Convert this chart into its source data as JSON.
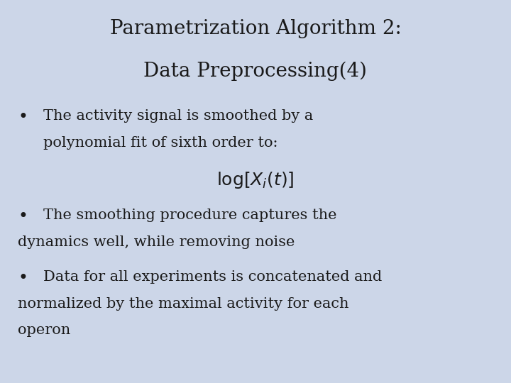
{
  "title_line1": "Parametrization Algorithm 2:",
  "title_line2": "Data Preprocessing(4)",
  "bullet1_line1": "The activity signal is smoothed by a",
  "bullet1_line2": "polynomial fit of sixth order to:",
  "formula": "$\\log[X_i(t)]$",
  "bullet2_line1": "The smoothing procedure captures the",
  "bullet2_line2": "dynamics well, while removing noise",
  "bullet3_line1": "Data for all experiments is concatenated and",
  "bullet3_line2": "normalized by the maximal activity for each",
  "bullet3_line3": "operon",
  "bg_color": "#ccd6e8",
  "text_color": "#1a1a1a",
  "title_fontsize": 20,
  "body_fontsize": 15,
  "formula_fontsize": 18
}
